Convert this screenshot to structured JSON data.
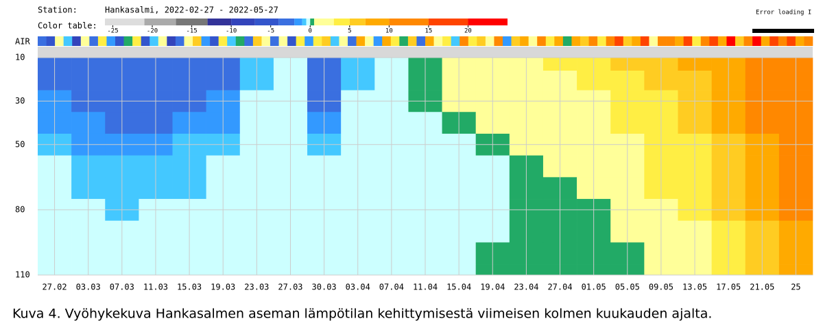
{
  "chart_data": {
    "type": "heatmap",
    "station_label": "Station:",
    "title": "Hankasalmi, 2022-02-27 - 2022-05-27",
    "status": "Error loading I",
    "categories": [
      "27.02",
      "03.03",
      "07.03",
      "11.03",
      "15.03",
      "19.03",
      "23.03",
      "27.03",
      "30.03",
      "03.04",
      "07.04",
      "11.04",
      "15.04",
      "19.04",
      "23.04",
      "27.04",
      "01.05",
      "05.05",
      "09.05",
      "13.05",
      "17.05",
      "21.05",
      "25"
    ],
    "y": [
      12,
      20,
      30,
      40,
      50,
      60,
      70,
      80,
      90,
      100,
      110
    ],
    "ylim": [
      10,
      110
    ],
    "yticks": [
      10,
      30,
      50,
      80,
      110
    ],
    "grid": true,
    "z": [
      [
        -3,
        -3,
        -3,
        -3,
        -3,
        -3,
        -0.7,
        -0.2,
        -3,
        -0.7,
        -0.2,
        0.2,
        1,
        1,
        1,
        4,
        4,
        6,
        6,
        8,
        8,
        12,
        12
      ],
      [
        -3,
        -3,
        -3,
        -3,
        -3,
        -3,
        -0.7,
        -0.2,
        -3,
        -0.7,
        -0.2,
        0.2,
        1,
        1,
        1,
        1,
        4,
        4,
        6,
        6,
        8,
        12,
        12
      ],
      [
        -1.5,
        -3,
        -3,
        -3,
        -3,
        -1.5,
        -0.2,
        -0.2,
        -3,
        -0.2,
        -0.2,
        0.2,
        1,
        1,
        1,
        1,
        1,
        4,
        4,
        6,
        8,
        12,
        12
      ],
      [
        -1.5,
        -1.5,
        -3,
        -3,
        -1.5,
        -1.5,
        -0.2,
        -0.2,
        -1.5,
        -0.2,
        -0.2,
        -0.2,
        0.2,
        1,
        1,
        1,
        1,
        4,
        4,
        6,
        8,
        12,
        12
      ],
      [
        -0.7,
        -1.5,
        -1.5,
        -1.5,
        -0.7,
        -0.7,
        -0.2,
        -0.2,
        -0.7,
        -0.2,
        -0.2,
        -0.2,
        -0.2,
        0.2,
        1,
        1,
        1,
        1,
        4,
        4,
        6,
        8,
        12
      ],
      [
        -0.2,
        -0.7,
        -0.7,
        -0.7,
        -0.7,
        -0.2,
        -0.2,
        -0.2,
        -0.2,
        -0.2,
        -0.2,
        -0.2,
        -0.2,
        -0.2,
        0.2,
        1,
        1,
        1,
        4,
        4,
        6,
        8,
        12
      ],
      [
        -0.2,
        -0.7,
        -0.7,
        -0.7,
        -0.7,
        -0.2,
        -0.2,
        -0.2,
        -0.2,
        -0.2,
        -0.2,
        -0.2,
        -0.2,
        -0.2,
        0.2,
        0.2,
        1,
        1,
        4,
        4,
        6,
        8,
        12
      ],
      [
        -0.2,
        -0.2,
        -0.7,
        -0.2,
        -0.2,
        -0.2,
        -0.2,
        -0.2,
        -0.2,
        -0.2,
        -0.2,
        -0.2,
        -0.2,
        -0.2,
        0.2,
        0.2,
        0.2,
        1,
        1,
        4,
        6,
        8,
        12
      ],
      [
        -0.2,
        -0.2,
        -0.2,
        -0.2,
        -0.2,
        -0.2,
        -0.2,
        -0.2,
        -0.2,
        -0.2,
        -0.2,
        -0.2,
        -0.2,
        -0.2,
        0.2,
        0.2,
        0.2,
        1,
        1,
        1,
        4,
        6,
        8
      ],
      [
        -0.2,
        -0.2,
        -0.2,
        -0.2,
        -0.2,
        -0.2,
        -0.2,
        -0.2,
        -0.2,
        -0.2,
        -0.2,
        -0.2,
        -0.2,
        0.2,
        0.2,
        0.2,
        0.2,
        0.2,
        1,
        1,
        4,
        6,
        8
      ],
      [
        -0.2,
        -0.2,
        -0.2,
        -0.2,
        -0.2,
        -0.2,
        -0.2,
        -0.2,
        -0.2,
        -0.2,
        -0.2,
        -0.2,
        -0.2,
        0.2,
        0.2,
        0.2,
        0.2,
        0.2,
        1,
        1,
        4,
        6,
        8
      ]
    ],
    "air": {
      "label": "AIR",
      "values": [
        -3,
        -6,
        2,
        -1,
        -8,
        1,
        -4,
        3,
        -2,
        -7,
        0,
        4,
        -5,
        -1,
        2,
        -9,
        -3,
        1,
        5,
        -2,
        -6,
        3,
        -1,
        0,
        -4,
        6,
        2,
        -3,
        1,
        -7,
        4,
        -2,
        3,
        5,
        -1,
        2,
        -4,
        7,
        1,
        -2,
        8,
        3,
        0,
        6,
        -3,
        9,
        2,
        4,
        -1,
        10,
        3,
        6,
        1,
        11,
        -2,
        5,
        8,
        2,
        12,
        4,
        7,
        0,
        9,
        6,
        13,
        3,
        10,
        15,
        5,
        8,
        17,
        2,
        11,
        14,
        7,
        18,
        4,
        12,
        16,
        9,
        20,
        6,
        13,
        21,
        8,
        15,
        11,
        19,
        7,
        14
      ]
    },
    "color_table": {
      "label": "Color table:",
      "edges": [
        -26,
        -21,
        -17,
        -13,
        -10,
        -7,
        -4,
        -2,
        -1,
        -0.5,
        0,
        0.5,
        3,
        5,
        7,
        10,
        15,
        20,
        25
      ],
      "colors": [
        "#dddddd",
        "#aaaaaa",
        "#777777",
        "#333399",
        "#3344bb",
        "#3355cc",
        "#3a6fe0",
        "#3399ff",
        "#44c8ff",
        "#ccffff",
        "#22aa66",
        "#ffff99",
        "#ffee44",
        "#ffcc22",
        "#ffaa00",
        "#ff8800",
        "#ff4400",
        "#ff0000"
      ],
      "ticks": [
        -25,
        -20,
        -15,
        -10,
        -5,
        0,
        5,
        10,
        15,
        20
      ]
    }
  },
  "caption": "Kuva 4. Vyöhykekuva Hankasalmen aseman lämpötilan kehittymisestä viimeisen kolmen kuukauden ajalta."
}
